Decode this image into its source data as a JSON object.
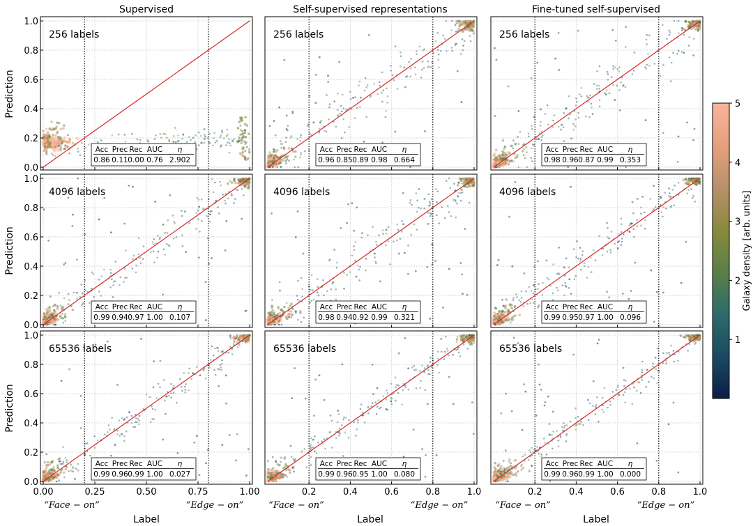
{
  "figure": {
    "column_titles": [
      "Supervised",
      "Self-supervised representations",
      "Fine-tuned self-supervised"
    ],
    "row_labels": [
      "256 labels",
      "4096 labels",
      "65536 labels"
    ],
    "x_axis_label": "Label",
    "y_axis_label": "Prediction",
    "x_extreme_labels": {
      "face_on": "“Face − on”",
      "edge_on": "“Edge − on”"
    },
    "metric_headers": [
      "Acc",
      "Prec",
      "Rec",
      "AUC",
      "η"
    ],
    "colorbar": {
      "label": "Galaxy density [arb. units]",
      "ticks": [
        "1",
        "2",
        "3",
        "4",
        "5"
      ],
      "range": [
        0,
        5
      ],
      "colors": [
        "#0b1d48",
        "#1a4a63",
        "#2e6b6a",
        "#5a7f4a",
        "#8a8a3c",
        "#b9906b",
        "#e7a07e",
        "#f9b49a"
      ]
    },
    "line_color": "#d62728"
  },
  "chart_data": [
    {
      "type": "scatter",
      "column": "Supervised",
      "row": "256 labels",
      "xlim": [
        0,
        1
      ],
      "ylim": [
        0,
        1
      ],
      "x_ticks": [
        "0.00",
        "0.25",
        "0.50",
        "0.75",
        "1.00"
      ],
      "y_ticks": [
        "0.0",
        "0.2",
        "0.4",
        "0.6",
        "0.8",
        "1.0"
      ],
      "thresholds": [
        0.2,
        0.8
      ],
      "metrics": [
        "0.86",
        "0.11",
        "0.00",
        "0.76",
        "2.902"
      ]
    },
    {
      "type": "scatter",
      "column": "Self-supervised representations",
      "row": "256 labels",
      "xlim": [
        0,
        1
      ],
      "ylim": [
        0,
        1
      ],
      "x_ticks": [
        "0.2",
        "0.4",
        "0.6",
        "0.8",
        "1.0"
      ],
      "y_ticks": [],
      "thresholds": [
        0.2,
        0.8
      ],
      "metrics": [
        "0.96",
        "0.85",
        "0.89",
        "0.98",
        "0.664"
      ]
    },
    {
      "type": "scatter",
      "column": "Fine-tuned self-supervised",
      "row": "256 labels",
      "xlim": [
        0,
        1
      ],
      "ylim": [
        0,
        1
      ],
      "x_ticks": [
        "0.2",
        "0.4",
        "0.6",
        "0.8",
        "1.0"
      ],
      "y_ticks": [],
      "thresholds": [
        0.2,
        0.8
      ],
      "metrics": [
        "0.98",
        "0.96",
        "0.87",
        "0.99",
        "0.353"
      ]
    },
    {
      "type": "scatter",
      "column": "Supervised",
      "row": "4096 labels",
      "xlim": [
        0,
        1
      ],
      "ylim": [
        0,
        1
      ],
      "x_ticks": [
        "0.00",
        "0.25",
        "0.50",
        "0.75",
        "1.00"
      ],
      "y_ticks": [
        "0.0",
        "0.2",
        "0.4",
        "0.6",
        "0.8",
        "1.0"
      ],
      "thresholds": [
        0.2,
        0.8
      ],
      "metrics": [
        "0.99",
        "0.94",
        "0.97",
        "1.00",
        "0.107"
      ]
    },
    {
      "type": "scatter",
      "column": "Self-supervised representations",
      "row": "4096 labels",
      "xlim": [
        0,
        1
      ],
      "ylim": [
        0,
        1
      ],
      "x_ticks": [
        "0.2",
        "0.4",
        "0.6",
        "0.8",
        "1.0"
      ],
      "y_ticks": [],
      "thresholds": [
        0.2,
        0.8
      ],
      "metrics": [
        "0.98",
        "0.94",
        "0.92",
        "0.99",
        "0.321"
      ]
    },
    {
      "type": "scatter",
      "column": "Fine-tuned self-supervised",
      "row": "4096 labels",
      "xlim": [
        0,
        1
      ],
      "ylim": [
        0,
        1
      ],
      "x_ticks": [
        "0.2",
        "0.4",
        "0.6",
        "0.8",
        "1.0"
      ],
      "y_ticks": [],
      "thresholds": [
        0.2,
        0.8
      ],
      "metrics": [
        "0.99",
        "0.95",
        "0.97",
        "1.00",
        "0.096"
      ]
    },
    {
      "type": "scatter",
      "column": "Supervised",
      "row": "65536 labels",
      "xlim": [
        0,
        1
      ],
      "ylim": [
        0,
        1
      ],
      "x_ticks": [
        "0.00",
        "0.25",
        "0.50",
        "0.75",
        "1.00"
      ],
      "y_ticks": [
        "0.0",
        "0.2",
        "0.4",
        "0.6",
        "0.8",
        "1.0"
      ],
      "thresholds": [
        0.2,
        0.8
      ],
      "metrics": [
        "0.99",
        "0.96",
        "0.99",
        "1.00",
        "0.027"
      ]
    },
    {
      "type": "scatter",
      "column": "Self-supervised representations",
      "row": "65536 labels",
      "xlim": [
        0,
        1
      ],
      "ylim": [
        0,
        1
      ],
      "x_ticks": [
        "0.2",
        "0.4",
        "0.6",
        "0.8",
        "1.0"
      ],
      "y_ticks": [],
      "thresholds": [
        0.2,
        0.8
      ],
      "metrics": [
        "0.99",
        "0.96",
        "0.95",
        "1.00",
        "0.080"
      ]
    },
    {
      "type": "scatter",
      "column": "Fine-tuned self-supervised",
      "row": "65536 labels",
      "xlim": [
        0,
        1
      ],
      "ylim": [
        0,
        1
      ],
      "x_ticks": [
        "0.2",
        "0.4",
        "0.6",
        "0.8",
        "1.0"
      ],
      "y_ticks": [],
      "thresholds": [
        0.2,
        0.8
      ],
      "metrics": [
        "0.99",
        "0.96",
        "0.99",
        "1.00",
        "0.000"
      ]
    }
  ]
}
